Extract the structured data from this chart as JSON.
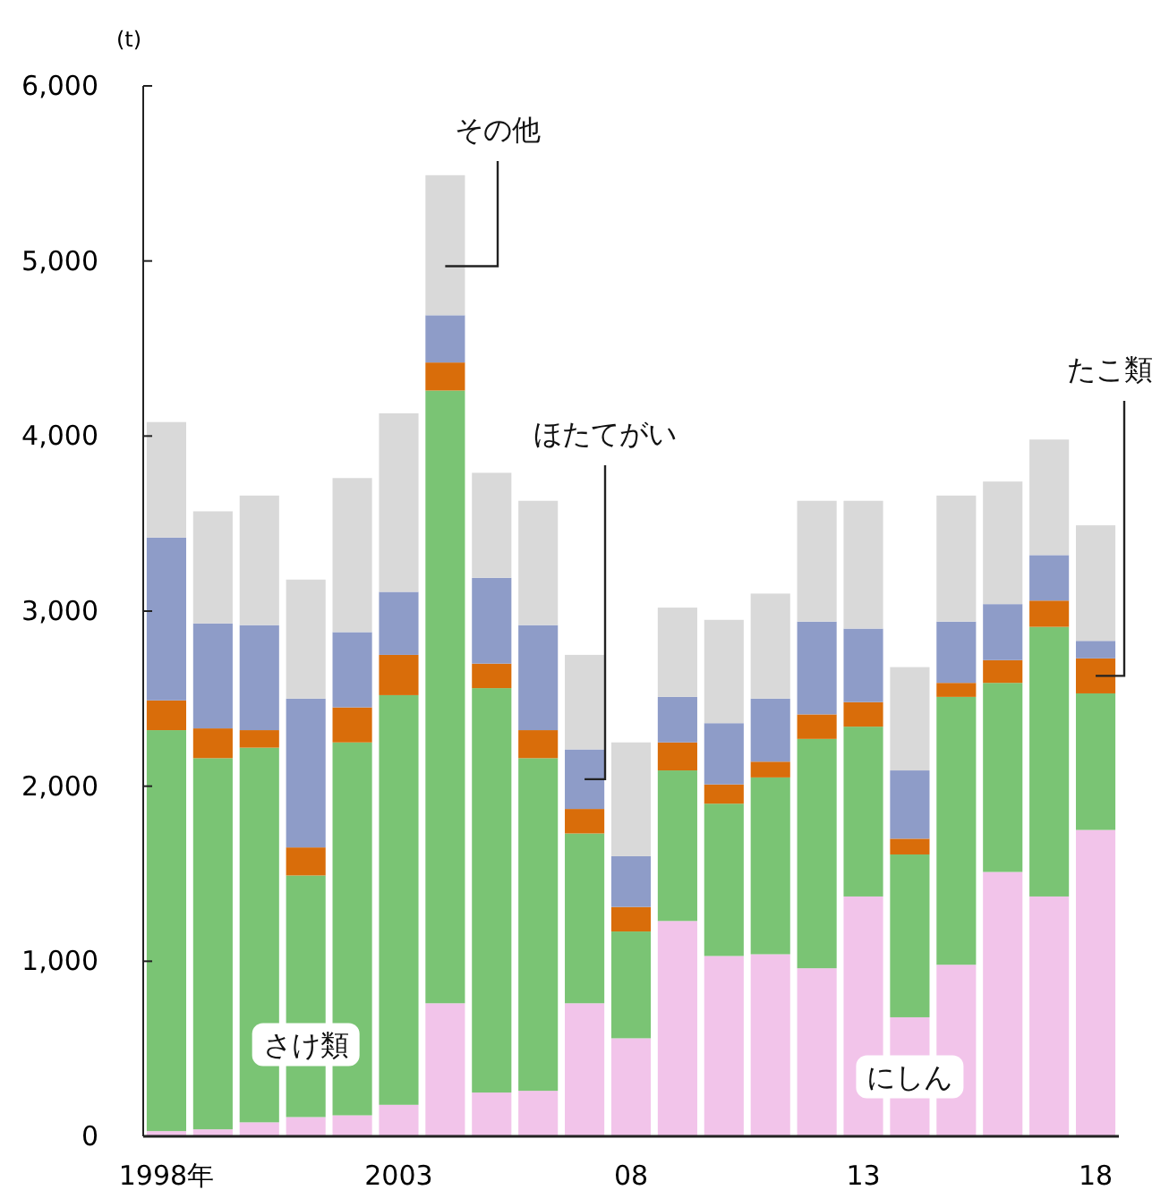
{
  "chart_data": {
    "type": "bar",
    "stacked": true,
    "ylabel": "(t)",
    "categories": [
      "1998年",
      null,
      null,
      null,
      null,
      "2003",
      null,
      null,
      null,
      null,
      "08",
      null,
      null,
      null,
      null,
      "13",
      null,
      null,
      null,
      null,
      "18"
    ],
    "series": [
      {
        "name": "にしん",
        "color": "#f2c4ea",
        "values": [
          30,
          40,
          80,
          110,
          120,
          180,
          760,
          250,
          260,
          760,
          560,
          1230,
          1030,
          1040,
          960,
          1370,
          680,
          980,
          1510,
          1370,
          1750
        ]
      },
      {
        "name": "さけ類",
        "color": "#7ac474",
        "values": [
          2290,
          2120,
          2140,
          1380,
          2130,
          2340,
          3500,
          2310,
          1900,
          970,
          610,
          860,
          870,
          1010,
          1310,
          970,
          930,
          1530,
          1080,
          1540,
          780
        ]
      },
      {
        "name": "たこ類",
        "color": "#d96d0a",
        "values": [
          170,
          170,
          100,
          160,
          200,
          230,
          160,
          140,
          160,
          140,
          140,
          160,
          110,
          90,
          140,
          140,
          90,
          80,
          130,
          150,
          200
        ]
      },
      {
        "name": "ほたてがい",
        "color": "#8e9cc8",
        "values": [
          930,
          600,
          600,
          850,
          430,
          360,
          270,
          490,
          600,
          340,
          290,
          260,
          350,
          360,
          530,
          420,
          390,
          350,
          320,
          260,
          100
        ]
      },
      {
        "name": "その他",
        "color": "#d9d9d9",
        "values": [
          660,
          640,
          740,
          680,
          880,
          1020,
          800,
          600,
          710,
          540,
          650,
          510,
          590,
          600,
          690,
          730,
          590,
          720,
          700,
          660,
          660
        ]
      }
    ],
    "ylim": [
      0,
      6000
    ],
    "yticks": [
      {
        "value": 0,
        "label": "0"
      },
      {
        "value": 1000,
        "label": "1,000"
      },
      {
        "value": 2000,
        "label": "2,000"
      },
      {
        "value": 3000,
        "label": "3,000"
      },
      {
        "value": 4000,
        "label": "4,000"
      },
      {
        "value": 5000,
        "label": "5,000"
      },
      {
        "value": 6000,
        "label": "6,000"
      }
    ],
    "legend": false,
    "grid": false
  }
}
